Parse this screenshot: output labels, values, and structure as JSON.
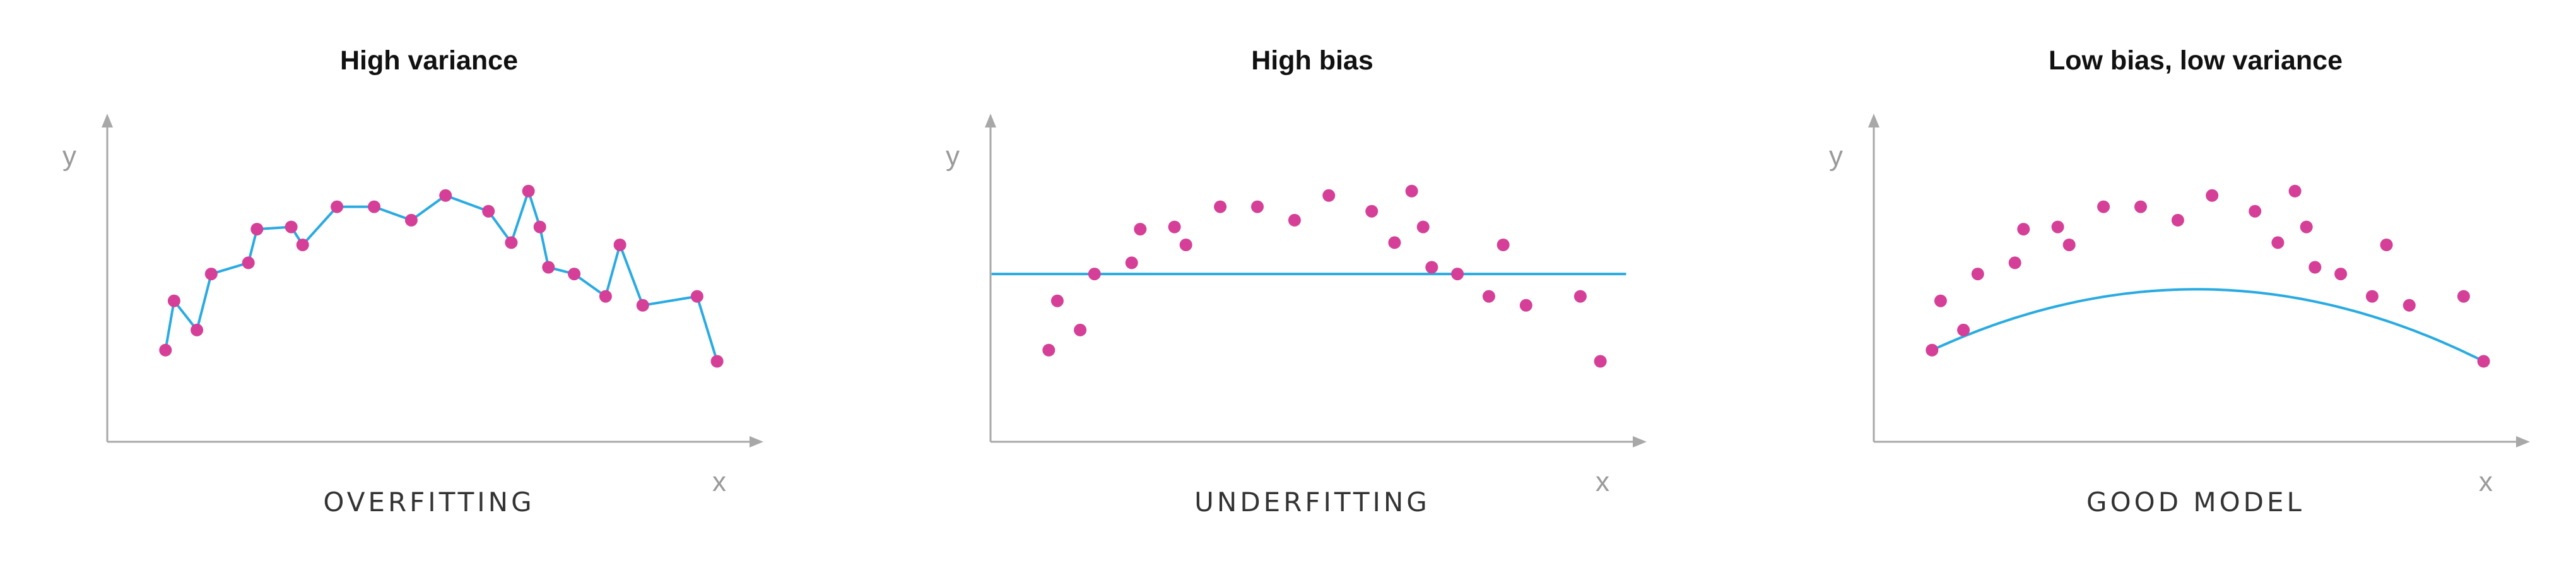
{
  "colors": {
    "point": "#d63f97",
    "fit_line": "#29abe2",
    "axis": "#a8a8a8"
  },
  "chart_data": [
    {
      "type": "line",
      "title": "High variance",
      "caption": "OVERFITTING",
      "xlabel": "x",
      "ylabel": "y",
      "xlim": [
        0,
        21.5
      ],
      "ylim": [
        0,
        10
      ],
      "grid": false,
      "points": [
        {
          "x": 1.0,
          "y": 2.4
        },
        {
          "x": 1.3,
          "y": 4.6
        },
        {
          "x": 2.1,
          "y": 3.3
        },
        {
          "x": 2.6,
          "y": 5.8
        },
        {
          "x": 3.9,
          "y": 6.3
        },
        {
          "x": 4.2,
          "y": 7.8
        },
        {
          "x": 5.4,
          "y": 7.9
        },
        {
          "x": 5.8,
          "y": 7.1
        },
        {
          "x": 7.0,
          "y": 8.8
        },
        {
          "x": 8.3,
          "y": 8.8
        },
        {
          "x": 9.6,
          "y": 8.2
        },
        {
          "x": 10.8,
          "y": 9.3
        },
        {
          "x": 12.3,
          "y": 8.6
        },
        {
          "x": 13.1,
          "y": 7.2
        },
        {
          "x": 13.7,
          "y": 9.5
        },
        {
          "x": 14.1,
          "y": 7.9
        },
        {
          "x": 14.4,
          "y": 6.1
        },
        {
          "x": 15.3,
          "y": 5.8
        },
        {
          "x": 16.4,
          "y": 4.8
        },
        {
          "x": 16.9,
          "y": 7.1
        },
        {
          "x": 17.7,
          "y": 4.4
        },
        {
          "x": 19.6,
          "y": 4.8
        },
        {
          "x": 20.3,
          "y": 1.9
        }
      ],
      "fit": {
        "kind": "interpolate"
      }
    },
    {
      "type": "scatter",
      "title": "High bias",
      "caption": "UNDERFITTING",
      "xlabel": "x",
      "ylabel": "y",
      "xlim": [
        0,
        21.5
      ],
      "ylim": [
        0,
        10
      ],
      "grid": false,
      "points": [
        {
          "x": 1.0,
          "y": 2.4
        },
        {
          "x": 1.3,
          "y": 4.6
        },
        {
          "x": 2.1,
          "y": 3.3
        },
        {
          "x": 2.6,
          "y": 5.8
        },
        {
          "x": 3.9,
          "y": 6.3
        },
        {
          "x": 4.2,
          "y": 7.8
        },
        {
          "x": 5.4,
          "y": 7.9
        },
        {
          "x": 5.8,
          "y": 7.1
        },
        {
          "x": 7.0,
          "y": 8.8
        },
        {
          "x": 8.3,
          "y": 8.8
        },
        {
          "x": 9.6,
          "y": 8.2
        },
        {
          "x": 10.8,
          "y": 9.3
        },
        {
          "x": 12.3,
          "y": 8.6
        },
        {
          "x": 13.1,
          "y": 7.2
        },
        {
          "x": 13.7,
          "y": 9.5
        },
        {
          "x": 14.1,
          "y": 7.9
        },
        {
          "x": 14.4,
          "y": 6.1
        },
        {
          "x": 15.3,
          "y": 5.8
        },
        {
          "x": 16.4,
          "y": 4.8
        },
        {
          "x": 16.9,
          "y": 7.1
        },
        {
          "x": 17.7,
          "y": 4.4
        },
        {
          "x": 19.6,
          "y": 4.8
        },
        {
          "x": 20.3,
          "y": 1.9
        }
      ],
      "fit": {
        "kind": "constant",
        "y": 5.8,
        "x_start": -1,
        "x_end": 21.2
      }
    },
    {
      "type": "scatter",
      "title": "Low bias, low variance",
      "caption": "GOOD MODEL",
      "xlabel": "x",
      "ylabel": "y",
      "xlim": [
        0,
        21.5
      ],
      "ylim": [
        0,
        10
      ],
      "grid": false,
      "points": [
        {
          "x": 1.0,
          "y": 2.4
        },
        {
          "x": 1.3,
          "y": 4.6
        },
        {
          "x": 2.1,
          "y": 3.3
        },
        {
          "x": 2.6,
          "y": 5.8
        },
        {
          "x": 3.9,
          "y": 6.3
        },
        {
          "x": 4.2,
          "y": 7.8
        },
        {
          "x": 5.4,
          "y": 7.9
        },
        {
          "x": 5.8,
          "y": 7.1
        },
        {
          "x": 7.0,
          "y": 8.8
        },
        {
          "x": 8.3,
          "y": 8.8
        },
        {
          "x": 9.6,
          "y": 8.2
        },
        {
          "x": 10.8,
          "y": 9.3
        },
        {
          "x": 12.3,
          "y": 8.6
        },
        {
          "x": 13.1,
          "y": 7.2
        },
        {
          "x": 13.7,
          "y": 9.5
        },
        {
          "x": 14.1,
          "y": 7.9
        },
        {
          "x": 14.4,
          "y": 6.1
        },
        {
          "x": 15.3,
          "y": 5.8
        },
        {
          "x": 16.4,
          "y": 4.8
        },
        {
          "x": 16.9,
          "y": 7.1
        },
        {
          "x": 17.7,
          "y": 4.4
        },
        {
          "x": 19.6,
          "y": 4.8
        },
        {
          "x": 20.3,
          "y": 1.9
        }
      ],
      "fit": {
        "kind": "quadratic",
        "coeffs": [
          -0.0346,
          0.7146,
          5.7e-05
        ],
        "x_start": 1.0,
        "x_end": 20.3
      }
    }
  ]
}
